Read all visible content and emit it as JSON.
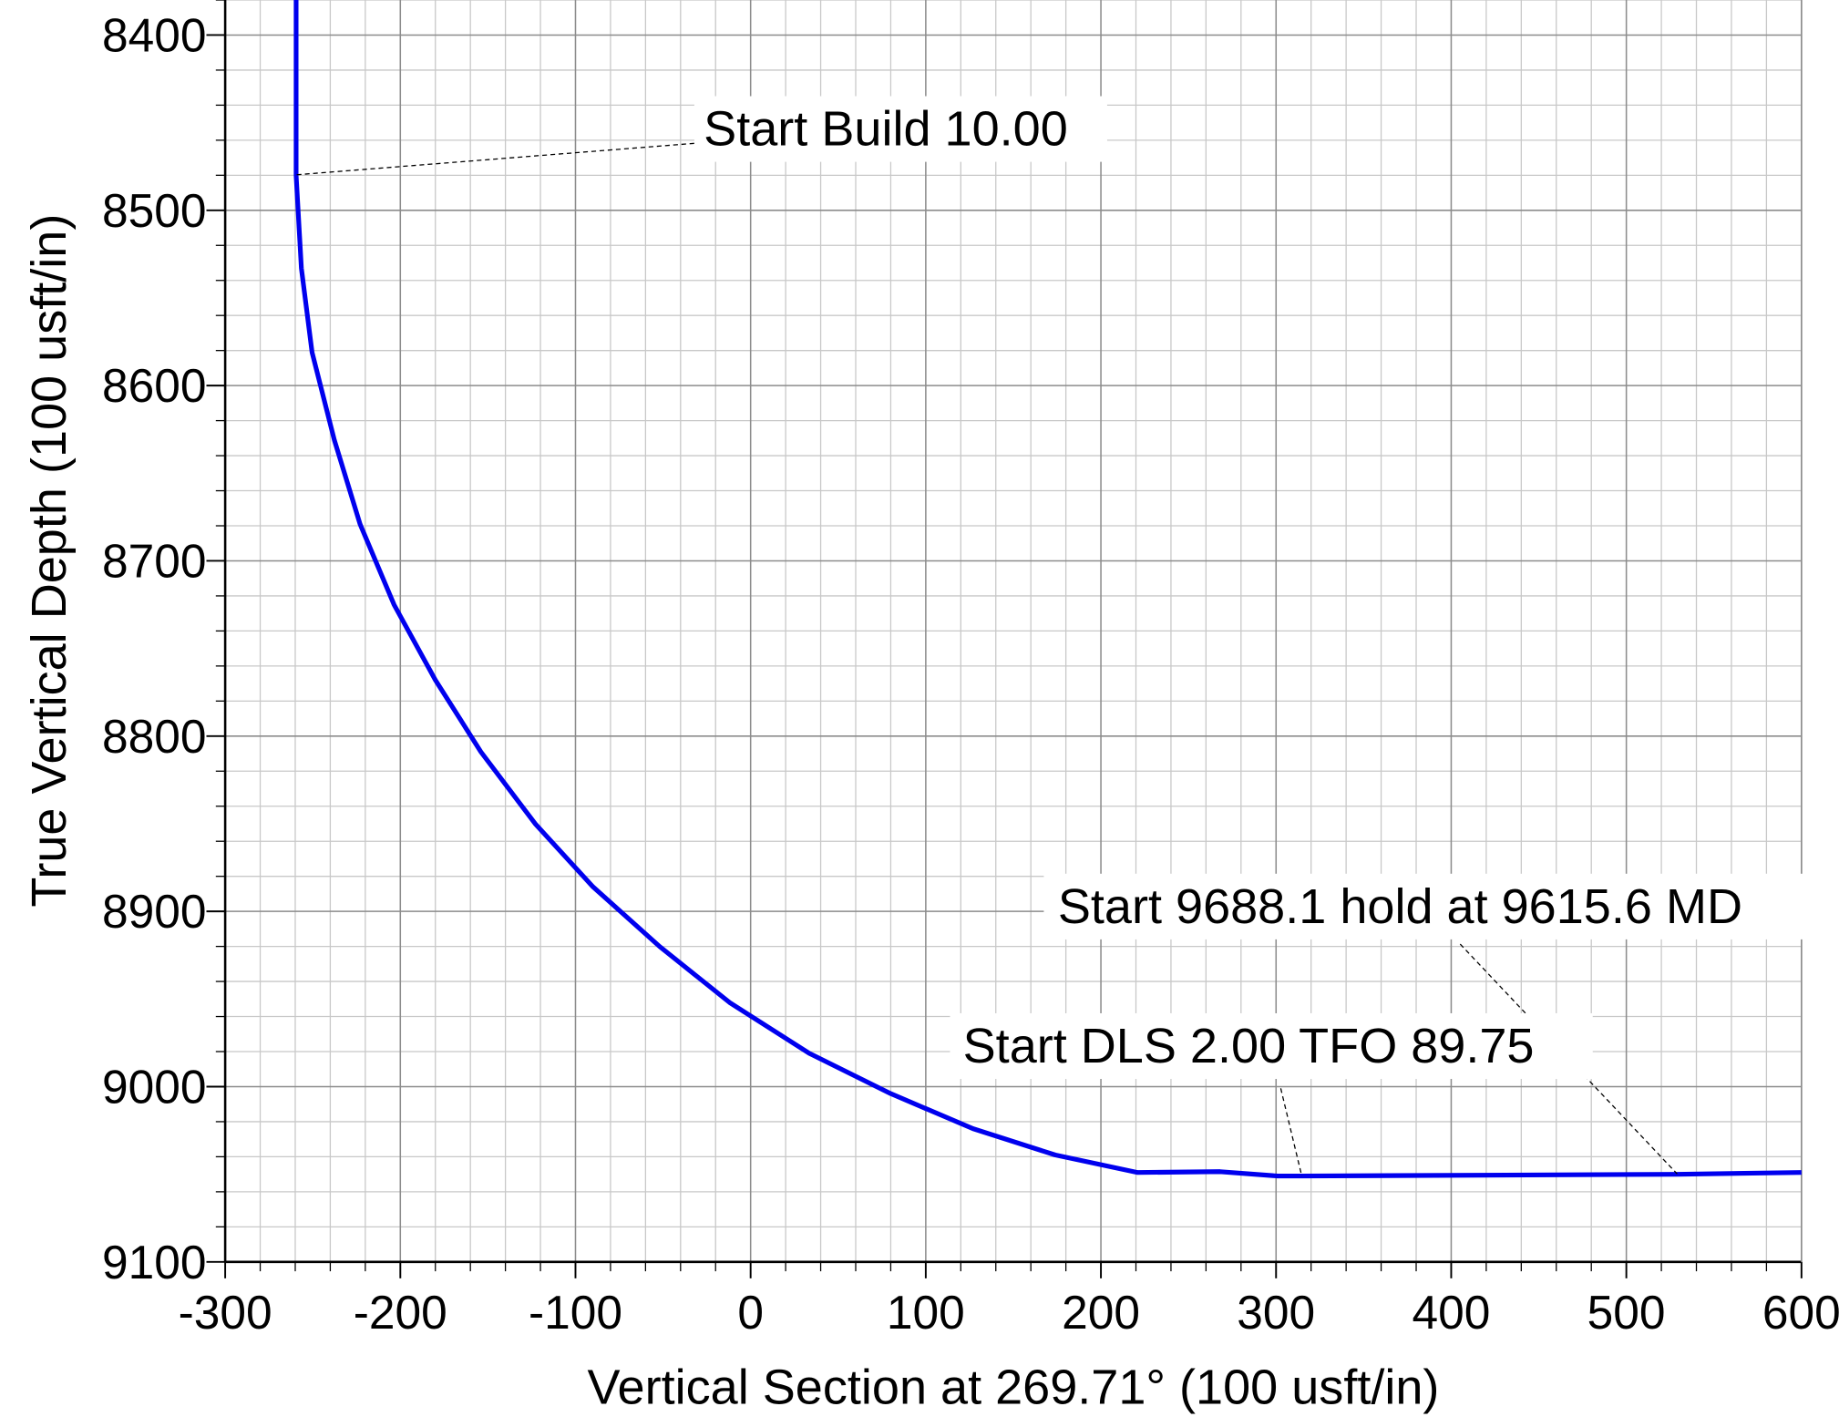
{
  "chart_data": {
    "type": "line",
    "x_label": "Vertical Section at 269.71° (100 usft/in)",
    "y_label": "True Vertical Depth (100 usft/in)",
    "xlim": [
      -300,
      600
    ],
    "ylim": [
      8380,
      9100
    ],
    "y_inverted": true,
    "xticks": [
      -300,
      -200,
      -100,
      0,
      100,
      200,
      300,
      400,
      500,
      600
    ],
    "yticks": [
      8400,
      8500,
      8600,
      8700,
      8800,
      8900,
      9000,
      9100
    ],
    "grid": true,
    "series": [
      {
        "color": "#0000ee",
        "x": [
          -259.5,
          -259.5,
          -256.5,
          -250.4,
          -237.7,
          -223,
          -203.6,
          -180,
          -154,
          -123,
          -90,
          -52,
          -12,
          33.5,
          80,
          127,
          174,
          221,
          268,
          301,
          315,
          529,
          600
        ],
        "values": [
          8380,
          8480,
          8533,
          8581,
          8631,
          8679,
          8725,
          8768,
          8809,
          8850,
          8886,
          8920,
          8952,
          8981,
          9004,
          9024,
          9039,
          9049,
          9048.5,
          9051,
          9051,
          9050,
          9049
        ]
      }
    ],
    "annotations": [
      "Start Build 10.00",
      "Start 9688.1 hold at 9615.6 MD",
      "Start DLS 2.00 TFO 89.75"
    ]
  }
}
